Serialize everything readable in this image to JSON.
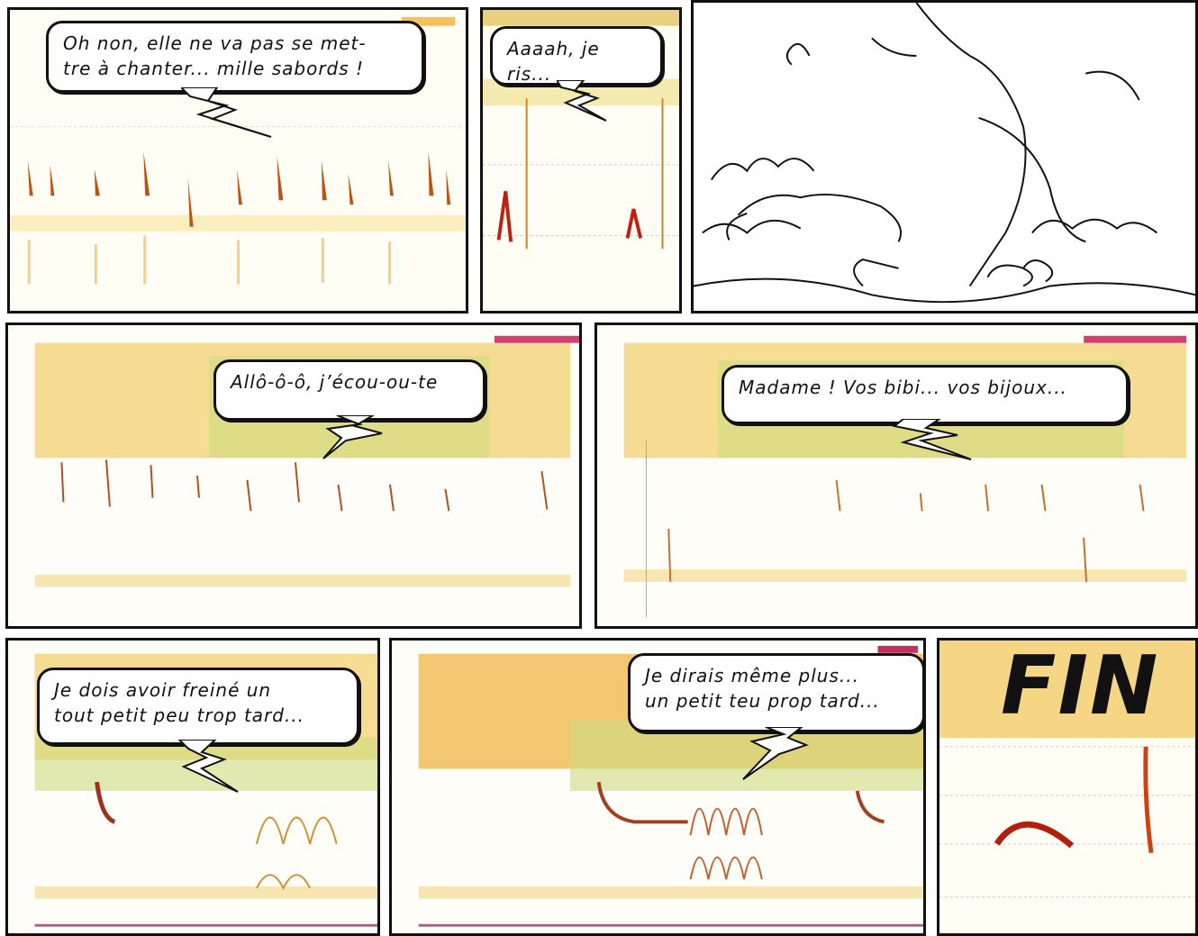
{
  "comic": {
    "panels": [
      {
        "id": "p1",
        "speech": "Oh non, elle ne va pas se met-\ntre à chanter... mille sabords !"
      },
      {
        "id": "p2",
        "speech": "Aaaah, je ris..."
      },
      {
        "id": "p3",
        "speech": ""
      },
      {
        "id": "p4",
        "speech": "Allô-ô-ô, j’écou-ou-te"
      },
      {
        "id": "p5",
        "speech": "Madame ! Vos bibi... vos bijoux..."
      },
      {
        "id": "p6",
        "speech": "Je dois avoir freiné un\ntout petit peu trop tard..."
      },
      {
        "id": "p7",
        "speech": "Je dirais même plus...\nun petit teu prop tard..."
      },
      {
        "id": "p8",
        "speech": ""
      }
    ],
    "end_title": "FIN"
  },
  "colors": {
    "spectro_warm": "#f0b040",
    "spectro_dark": "#a02010",
    "spectro_green": "#c8d870",
    "ink": "#111111"
  }
}
